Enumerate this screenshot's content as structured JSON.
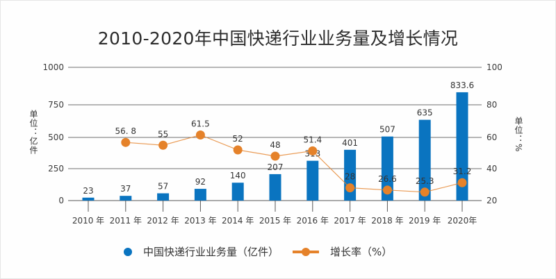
{
  "chart_data": {
    "type": "bar+line",
    "title": "2010-2020年中国快递行业业务量及增长情况",
    "categories": [
      "2010 年",
      "2011 年",
      "2012 年",
      "2013 年",
      "2014 年",
      "2015 年",
      "2016 年",
      "2017 年",
      "2018 年",
      "2019 年",
      "2020年"
    ],
    "series": [
      {
        "name": "中国快递行业业务量（亿件）",
        "type": "bar",
        "axis": "left",
        "color": "#0a74c0",
        "values": [
          23,
          37,
          57,
          92,
          140,
          207,
          313,
          401,
          507,
          635,
          833.6
        ],
        "labels": [
          "23",
          "37",
          "57",
          "92",
          "140",
          "207",
          "313",
          "401",
          "507",
          "635",
          "833.6"
        ]
      },
      {
        "name": "增长率（%）",
        "type": "line",
        "axis": "right",
        "color": "#e5822a",
        "values": [
          null,
          56.8,
          55,
          61.5,
          52,
          48,
          51.4,
          28,
          26.6,
          25.3,
          31.2
        ],
        "labels": [
          null,
          "56. 8",
          "55",
          "61.5",
          "52",
          "48",
          "51.4",
          "28",
          "26.6",
          "25.3",
          "31.2"
        ]
      }
    ],
    "left_axis": {
      "label": "单位：亿件",
      "ticks": [
        0,
        250,
        500,
        750,
        1000
      ],
      "ylim": [
        0,
        1000
      ]
    },
    "right_axis": {
      "label": "单位：%",
      "ticks": [
        20,
        40,
        60,
        80,
        100
      ],
      "ylim": [
        20,
        100
      ]
    },
    "grid": true,
    "legend_position": "bottom"
  },
  "legend": {
    "bar_label": "中国快递行业业务量（亿件）",
    "line_label": "增长率（%）"
  },
  "axis_labels": {
    "left": "单位：亿件",
    "right": "单位：%"
  }
}
